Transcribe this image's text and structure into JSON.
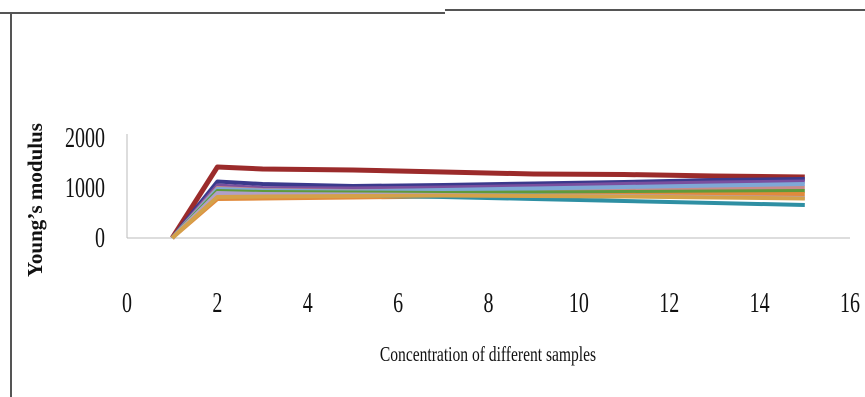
{
  "chart_data": {
    "type": "line",
    "title": "",
    "xlabel": "Concentration of different samples",
    "ylabel": "Young’s modulus",
    "xlim": [
      0,
      16
    ],
    "ylim": [
      0,
      2000
    ],
    "x_ticks": [
      "0",
      "2",
      "4",
      "6",
      "8",
      "10",
      "12",
      "14",
      "16"
    ],
    "y_ticks": [
      "0",
      "1000",
      "2000"
    ],
    "grid": false,
    "legend": "none",
    "x": [
      1,
      2,
      3,
      5,
      7,
      9,
      11,
      13,
      15
    ],
    "series": [
      {
        "color": "#9b2b2b",
        "values": [
          0,
          1420,
          1380,
          1360,
          1320,
          1280,
          1270,
          1240,
          1220
        ]
      },
      {
        "color": "#3a3a8c",
        "values": [
          0,
          1130,
          1080,
          1040,
          1060,
          1090,
          1120,
          1160,
          1180
        ]
      },
      {
        "color": "#7a4f9e",
        "values": [
          0,
          1050,
          1000,
          990,
          1010,
          1040,
          1080,
          1110,
          1130
        ]
      },
      {
        "color": "#c98a8a",
        "values": [
          0,
          1000,
          960,
          940,
          950,
          970,
          990,
          1000,
          1010
        ]
      },
      {
        "color": "#7fa8d6",
        "values": [
          0,
          980,
          950,
          930,
          960,
          990,
          1020,
          1050,
          1080
        ]
      },
      {
        "color": "#5e9a3b",
        "values": [
          0,
          940,
          920,
          910,
          900,
          910,
          920,
          930,
          940
        ]
      },
      {
        "color": "#e08a3c",
        "values": [
          0,
          780,
          790,
          810,
          830,
          850,
          860,
          870,
          880
        ]
      },
      {
        "color": "#2e8fa3",
        "values": [
          0,
          870,
          860,
          850,
          820,
          780,
          740,
          700,
          660
        ]
      },
      {
        "color": "#b0a0c8",
        "values": [
          0,
          900,
          880,
          870,
          860,
          850,
          840,
          820,
          800
        ]
      },
      {
        "color": "#d4a14a",
        "values": [
          0,
          820,
          830,
          840,
          850,
          840,
          830,
          810,
          790
        ]
      }
    ]
  }
}
